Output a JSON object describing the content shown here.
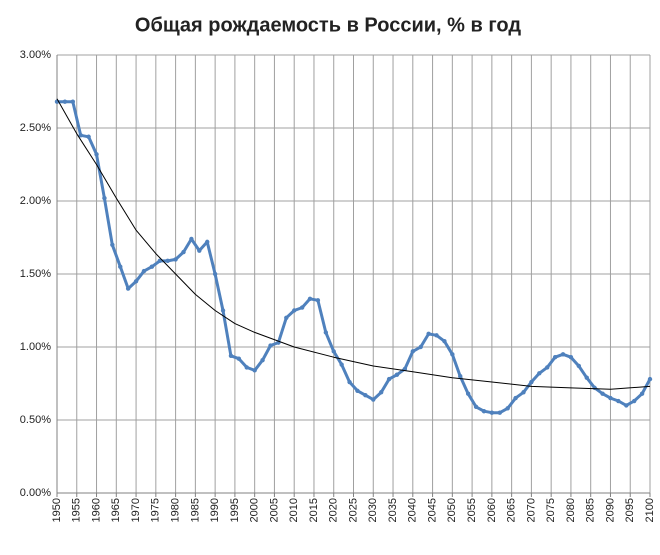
{
  "chart_data": {
    "type": "line",
    "title": "Общая рождаемость в России, % в год",
    "ylim": [
      0,
      3
    ],
    "yticks": [
      {
        "value": 0,
        "label": "0.00%"
      },
      {
        "value": 0.5,
        "label": "0.50%"
      },
      {
        "value": 1,
        "label": "1.00%"
      },
      {
        "value": 1.5,
        "label": "1.50%"
      },
      {
        "value": 2,
        "label": "2.00%"
      },
      {
        "value": 2.5,
        "label": "2.50%"
      },
      {
        "value": 3,
        "label": "3.00%"
      }
    ],
    "xlim": [
      1950,
      2100
    ],
    "xticks": [
      1950,
      1955,
      1960,
      1965,
      1970,
      1975,
      1980,
      1985,
      1990,
      1995,
      2000,
      2005,
      2010,
      2015,
      2020,
      2025,
      2030,
      2035,
      2040,
      2045,
      2050,
      2055,
      2060,
      2065,
      2070,
      2075,
      2080,
      2085,
      2090,
      2095,
      2100
    ],
    "grid": true,
    "series": [
      {
        "color": "#4f81bd",
        "markers": true,
        "x": [
          1950,
          1952,
          1954,
          1956,
          1958,
          1960,
          1962,
          1964,
          1966,
          1968,
          1970,
          1972,
          1974,
          1976,
          1978,
          1980,
          1982,
          1984,
          1986,
          1988,
          1990,
          1992,
          1994,
          1996,
          1998,
          2000,
          2002,
          2004,
          2006,
          2008,
          2010,
          2012,
          2014,
          2016,
          2018,
          2020,
          2022,
          2024,
          2026,
          2028,
          2030,
          2032,
          2034,
          2036,
          2038,
          2040,
          2042,
          2044,
          2046,
          2048,
          2050,
          2052,
          2054,
          2056,
          2058,
          2060,
          2062,
          2064,
          2066,
          2068,
          2070,
          2072,
          2074,
          2076,
          2078,
          2080,
          2082,
          2084,
          2086,
          2088,
          2090,
          2092,
          2094,
          2096,
          2098,
          2100
        ],
        "values": [
          2.68,
          2.68,
          2.68,
          2.45,
          2.44,
          2.32,
          2.02,
          1.7,
          1.55,
          1.4,
          1.45,
          1.52,
          1.55,
          1.59,
          1.59,
          1.6,
          1.65,
          1.74,
          1.66,
          1.72,
          1.5,
          1.25,
          0.94,
          0.92,
          0.86,
          0.84,
          0.91,
          1.01,
          1.03,
          1.2,
          1.25,
          1.27,
          1.33,
          1.32,
          1.1,
          0.97,
          0.88,
          0.76,
          0.7,
          0.67,
          0.64,
          0.69,
          0.78,
          0.81,
          0.85,
          0.97,
          1.0,
          1.09,
          1.08,
          1.04,
          0.95,
          0.8,
          0.68,
          0.59,
          0.56,
          0.55,
          0.55,
          0.58,
          0.65,
          0.69,
          0.76,
          0.82,
          0.86,
          0.93,
          0.95,
          0.93,
          0.87,
          0.79,
          0.72,
          0.68,
          0.65,
          0.63,
          0.6,
          0.63,
          0.68,
          0.78
        ]
      },
      {
        "color": "#000000",
        "markers": false,
        "x": [
          1950,
          1955,
          1960,
          1965,
          1970,
          1975,
          1980,
          1985,
          1990,
          1995,
          2000,
          2010,
          2020,
          2030,
          2040,
          2050,
          2060,
          2070,
          2080,
          2090,
          2100
        ],
        "values": [
          2.7,
          2.46,
          2.25,
          2.02,
          1.8,
          1.64,
          1.5,
          1.36,
          1.25,
          1.16,
          1.1,
          1.0,
          0.93,
          0.87,
          0.83,
          0.79,
          0.76,
          0.73,
          0.72,
          0.71,
          0.73
        ]
      }
    ]
  }
}
